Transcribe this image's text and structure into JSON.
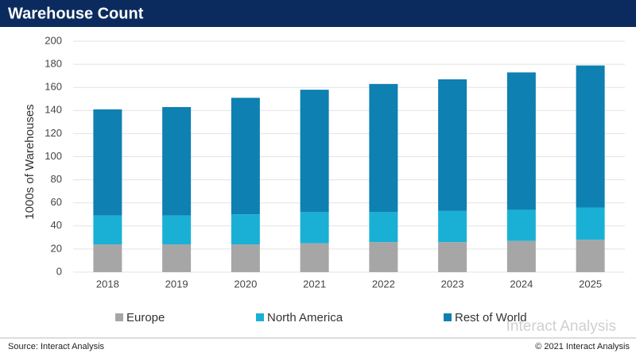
{
  "chart_data": {
    "type": "stacked-bar",
    "title": "Warehouse Count",
    "y_label": "1000s of Warehouses",
    "categories": [
      "2018",
      "2019",
      "2020",
      "2021",
      "2022",
      "2023",
      "2024",
      "2025"
    ],
    "series": [
      {
        "name": "Europe",
        "color": "#a6a6a6",
        "values": [
          24,
          24,
          24,
          25,
          26,
          26,
          27,
          28
        ]
      },
      {
        "name": "North America",
        "color": "#1ab0d6",
        "values": [
          25,
          25,
          26,
          27,
          26,
          27,
          27,
          28
        ]
      },
      {
        "name": "Rest of World",
        "color": "#0e80b2",
        "values": [
          92,
          94,
          101,
          106,
          111,
          114,
          119,
          123
        ]
      }
    ],
    "ylim": [
      0,
      200
    ],
    "yticks": [
      0,
      20,
      40,
      60,
      80,
      100,
      120,
      140,
      160,
      180,
      200
    ],
    "grid": true,
    "legend": "bottom",
    "source": "Source: Interact Analysis",
    "copyright": "© 2021 Interact Analysis",
    "watermark": "Interact Analysis"
  }
}
